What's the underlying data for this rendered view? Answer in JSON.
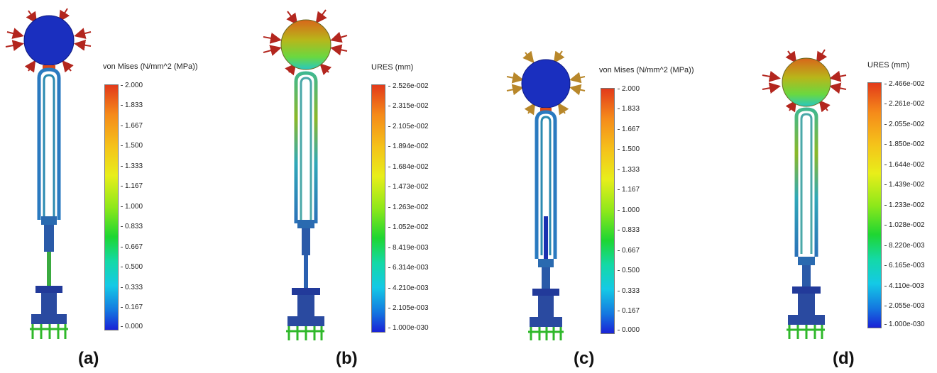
{
  "panels": [
    {
      "id": "a",
      "caption": "(a)",
      "scale_title": "von Mises (N/mm^2 (MPa))",
      "ticks": [
        "2.000",
        "1.833",
        "1.667",
        "1.500",
        "1.333",
        "1.167",
        "1.000",
        "0.833",
        "0.667",
        "0.500",
        "0.333",
        "0.167",
        "0.000"
      ],
      "ball_color": "#1a2fbf",
      "arrow_color": "#b3261e"
    },
    {
      "id": "b",
      "caption": "(b)",
      "scale_title": "URES (mm)",
      "ticks": [
        "2.526e-002",
        "2.315e-002",
        "2.105e-002",
        "1.894e-002",
        "1.684e-002",
        "1.473e-002",
        "1.263e-002",
        "1.052e-002",
        "8.419e-003",
        "6.314e-003",
        "4.210e-003",
        "2.105e-003",
        "1.000e-030"
      ],
      "ball_color": "gradient",
      "arrow_color": "#b3261e"
    },
    {
      "id": "c",
      "caption": "(c)",
      "scale_title": "von Mises (N/mm^2 (MPa))",
      "ticks": [
        "2.000",
        "1.833",
        "1.667",
        "1.500",
        "1.333",
        "1.167",
        "1.000",
        "0.833",
        "0.667",
        "0.500",
        "0.333",
        "0.167",
        "0.000"
      ],
      "ball_color": "#1a2fbf",
      "arrow_color": "#b8872a"
    },
    {
      "id": "d",
      "caption": "(d)",
      "scale_title": "URES (mm)",
      "ticks": [
        "2.466e-002",
        "2.261e-002",
        "2.055e-002",
        "1.850e-002",
        "1.644e-002",
        "1.439e-002",
        "1.233e-002",
        "1.028e-002",
        "8.220e-003",
        "6.165e-003",
        "4.110e-003",
        "2.055e-003",
        "1.000e-030"
      ],
      "ball_color": "gradient",
      "arrow_color": "#b3261e"
    }
  ]
}
